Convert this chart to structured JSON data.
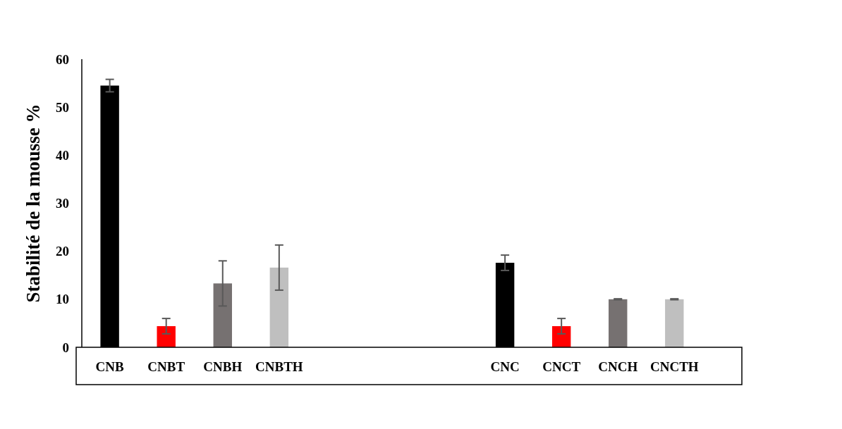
{
  "chart_data": {
    "type": "bar",
    "ylabel": "Stabilité de la mousse  %",
    "categories": [
      "CNB",
      "CNBT",
      "CNBH",
      "CNBTH",
      null,
      null,
      null,
      "CNC",
      "CNCT",
      "CNCH",
      "CNCTH",
      null
    ],
    "values": [
      54.5,
      4.4,
      13.3,
      16.6,
      null,
      null,
      null,
      17.6,
      4.4,
      10.0,
      10.0,
      null
    ],
    "errors": [
      1.3,
      1.6,
      4.7,
      4.7,
      null,
      null,
      null,
      1.6,
      1.6,
      0.1,
      0.1,
      null
    ],
    "colors": [
      "#000000",
      "#ff0000",
      "#767171",
      "#bfbfbf",
      null,
      null,
      null,
      "#000000",
      "#ff0000",
      "#767171",
      "#bfbfbf",
      null
    ],
    "ylim": [
      0,
      60
    ],
    "yticks": [
      0,
      10,
      20,
      30,
      40,
      50,
      60
    ],
    "grid": false
  }
}
